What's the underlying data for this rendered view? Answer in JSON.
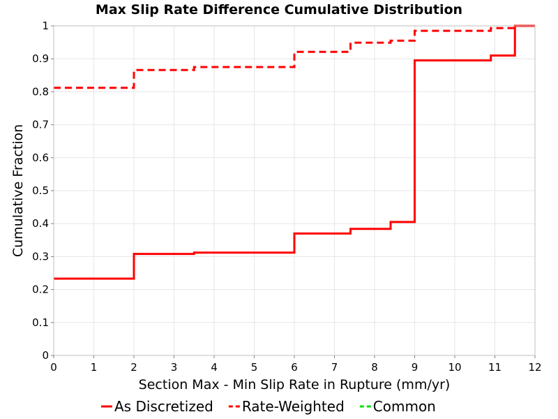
{
  "chart_data": {
    "type": "line",
    "title": "Max Slip Rate Difference Cumulative Distribution",
    "xlabel": "Section Max - Min Slip Rate in Rupture (mm/yr)",
    "ylabel": "Cumulative Fraction",
    "xlim": [
      0,
      12
    ],
    "ylim": [
      0,
      1
    ],
    "x_ticks": [
      "0",
      "1",
      "2",
      "3",
      "4",
      "5",
      "6",
      "7",
      "8",
      "9",
      "10",
      "11",
      "12"
    ],
    "y_ticks": [
      "0",
      "0.1",
      "0.2",
      "0.3",
      "0.4",
      "0.5",
      "0.6",
      "0.7",
      "0.8",
      "0.9",
      "1"
    ],
    "grid": true,
    "legend_position": "bottom",
    "series": [
      {
        "name": "As Discretized",
        "color": "#ff0000",
        "dash": "solid",
        "step": true,
        "points": [
          [
            0,
            0.233
          ],
          [
            2.0,
            0.308
          ],
          [
            3.5,
            0.312
          ],
          [
            6.0,
            0.37
          ],
          [
            7.4,
            0.384
          ],
          [
            8.4,
            0.405
          ],
          [
            9.0,
            0.895
          ],
          [
            10.9,
            0.91
          ],
          [
            11.5,
            1.0
          ],
          [
            12,
            1.0
          ]
        ]
      },
      {
        "name": "Rate-Weighted",
        "color": "#ff0000",
        "dash": "dashed",
        "step": true,
        "points": [
          [
            0,
            0.812
          ],
          [
            2.0,
            0.866
          ],
          [
            3.5,
            0.875
          ],
          [
            6.0,
            0.921
          ],
          [
            7.4,
            0.949
          ],
          [
            8.4,
            0.955
          ],
          [
            9.0,
            0.985
          ],
          [
            10.9,
            0.993
          ],
          [
            11.5,
            1.0
          ],
          [
            12,
            1.0
          ]
        ]
      },
      {
        "name": "Common",
        "color": "#00e000",
        "dash": "dashed",
        "step": true,
        "points": []
      }
    ]
  }
}
